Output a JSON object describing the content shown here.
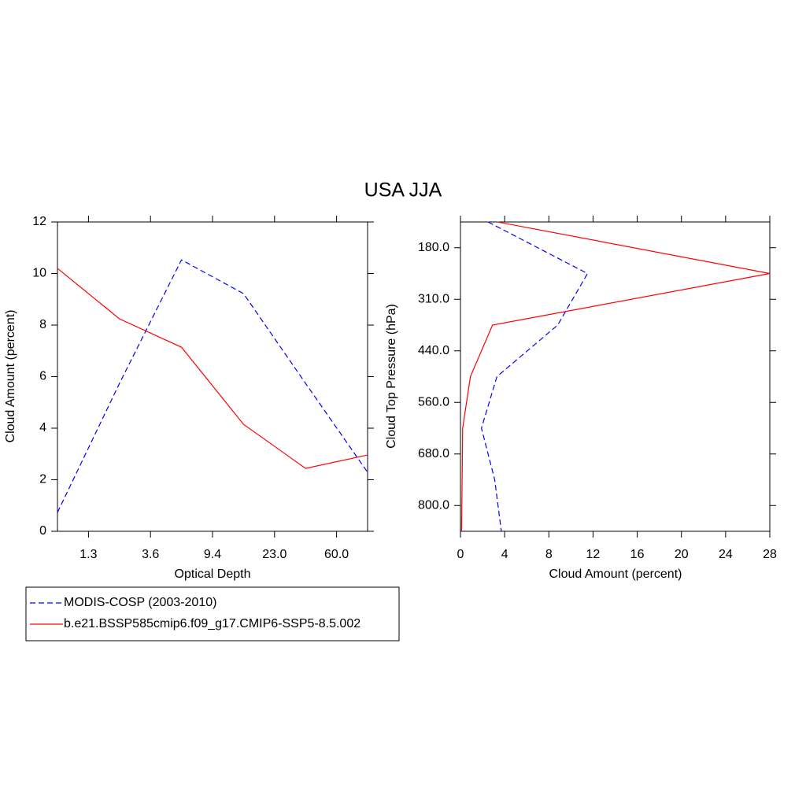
{
  "title": "USA JJA",
  "chart_data": [
    {
      "type": "line",
      "xlabel": "Optical Depth",
      "ylabel": "Cloud Amount (percent)",
      "x": [
        0,
        1,
        2,
        3,
        4,
        5
      ],
      "xlim": [
        0,
        5
      ],
      "xticks": [
        {
          "value": 0.5,
          "label": "1.3"
        },
        {
          "value": 1.5,
          "label": "3.6"
        },
        {
          "value": 2.5,
          "label": "9.4"
        },
        {
          "value": 3.5,
          "label": "23.0"
        },
        {
          "value": 4.5,
          "label": "60.0"
        }
      ],
      "ylim": [
        0,
        12
      ],
      "yticks": [
        0,
        2,
        4,
        6,
        8,
        10,
        12
      ],
      "series": [
        {
          "name": "MODIS-COSP (2003-2010)",
          "color": "#0000ff",
          "dash": true,
          "values": [
            0.73,
            5.74,
            10.53,
            9.22,
            5.74,
            2.29
          ]
        },
        {
          "name": "b.e21.BSSP585cmip6.f09_g17.CMIP6-SSP5-8.5.002",
          "color": "#ff0000",
          "dash": false,
          "values": [
            10.2,
            8.24,
            7.14,
            4.15,
            2.44,
            2.96
          ]
        }
      ]
    },
    {
      "type": "line",
      "orientation": "horizontal",
      "xlabel": "Cloud Amount (percent)",
      "ylabel": "Cloud Top Pressure (hPa)",
      "y": [
        0,
        1,
        2,
        3,
        4,
        5,
        6
      ],
      "ylim": [
        0,
        6
      ],
      "y_reversed": true,
      "yticks": [
        {
          "value": 0.5,
          "label": "180.0"
        },
        {
          "value": 1.5,
          "label": "310.0"
        },
        {
          "value": 2.5,
          "label": "440.0"
        },
        {
          "value": 3.5,
          "label": "560.0"
        },
        {
          "value": 4.5,
          "label": "680.0"
        },
        {
          "value": 5.5,
          "label": "800.0"
        }
      ],
      "xlim": [
        0,
        28
      ],
      "xticks": [
        0,
        4,
        8,
        12,
        16,
        20,
        24,
        28
      ],
      "series": [
        {
          "name": "MODIS-COSP (2003-2010)",
          "color": "#0000ff",
          "dash": true,
          "values": [
            2.5,
            11.5,
            8.8,
            3.3,
            1.9,
            3.1,
            3.7
          ]
        },
        {
          "name": "b.e21.BSSP585cmip6.f09_g17.CMIP6-SSP5-8.5.002",
          "color": "#ff0000",
          "dash": false,
          "values": [
            3.35,
            28,
            2.9,
            0.9,
            0.2,
            0.15,
            0.1
          ]
        }
      ]
    }
  ]
}
